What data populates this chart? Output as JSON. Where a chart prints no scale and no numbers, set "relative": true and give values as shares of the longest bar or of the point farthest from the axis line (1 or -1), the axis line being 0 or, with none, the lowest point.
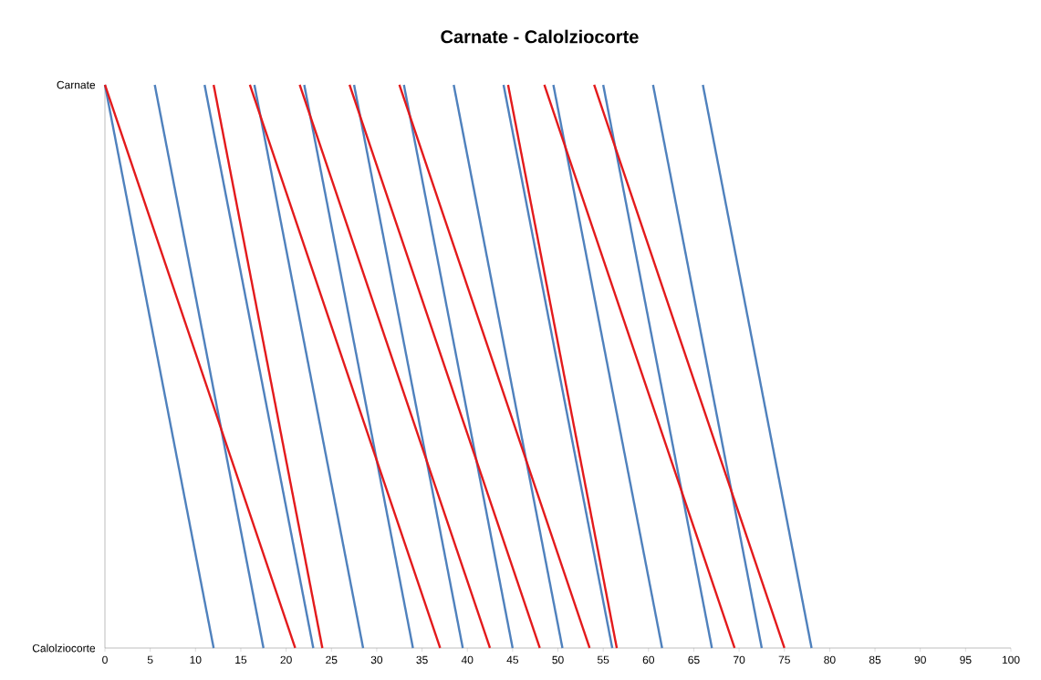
{
  "chart_data": {
    "type": "line",
    "title": "Carnate  - Calolziocorte",
    "relative": true,
    "annotations": [
      "Carnate",
      "Calolziocorte"
    ],
    "xlim": [
      0,
      100
    ],
    "xticks": [
      0,
      5,
      10,
      15,
      20,
      25,
      30,
      35,
      40,
      45,
      50,
      55,
      60,
      65,
      70,
      75,
      80,
      85,
      90,
      95,
      100
    ],
    "series": [
      {
        "color": "#4f81bd",
        "x": [
          0,
          12
        ],
        "values": [
          1,
          0
        ]
      },
      {
        "color": "#4f81bd",
        "x": [
          5.5,
          17.5
        ],
        "values": [
          1,
          0
        ]
      },
      {
        "color": "#4f81bd",
        "x": [
          11,
          23
        ],
        "values": [
          1,
          0
        ]
      },
      {
        "color": "#4f81bd",
        "x": [
          16.5,
          28.5
        ],
        "values": [
          1,
          0
        ]
      },
      {
        "color": "#4f81bd",
        "x": [
          22,
          34
        ],
        "values": [
          1,
          0
        ]
      },
      {
        "color": "#4f81bd",
        "x": [
          27.5,
          39.5
        ],
        "values": [
          1,
          0
        ]
      },
      {
        "color": "#4f81bd",
        "x": [
          33,
          45
        ],
        "values": [
          1,
          0
        ]
      },
      {
        "color": "#4f81bd",
        "x": [
          38.5,
          50.5
        ],
        "values": [
          1,
          0
        ]
      },
      {
        "color": "#4f81bd",
        "x": [
          44,
          56
        ],
        "values": [
          1,
          0
        ]
      },
      {
        "color": "#4f81bd",
        "x": [
          49.5,
          61.5
        ],
        "values": [
          1,
          0
        ]
      },
      {
        "color": "#4f81bd",
        "x": [
          55,
          67
        ],
        "values": [
          1,
          0
        ]
      },
      {
        "color": "#4f81bd",
        "x": [
          60.5,
          72.5
        ],
        "values": [
          1,
          0
        ]
      },
      {
        "color": "#4f81bd",
        "x": [
          66,
          78
        ],
        "values": [
          1,
          0
        ]
      },
      {
        "color": "#e31a1c",
        "x": [
          0,
          21
        ],
        "values": [
          1,
          0
        ]
      },
      {
        "color": "#e31a1c",
        "x": [
          12,
          24
        ],
        "values": [
          1,
          0
        ]
      },
      {
        "color": "#e31a1c",
        "x": [
          16,
          37
        ],
        "values": [
          1,
          0
        ]
      },
      {
        "color": "#e31a1c",
        "x": [
          21.5,
          42.5
        ],
        "values": [
          1,
          0
        ]
      },
      {
        "color": "#e31a1c",
        "x": [
          27,
          48
        ],
        "values": [
          1,
          0
        ]
      },
      {
        "color": "#e31a1c",
        "x": [
          32.5,
          53.5
        ],
        "values": [
          1,
          0
        ]
      },
      {
        "color": "#e31a1c",
        "x": [
          44.5,
          56.5
        ],
        "values": [
          1,
          0
        ]
      },
      {
        "color": "#e31a1c",
        "x": [
          48.5,
          69.5
        ],
        "values": [
          1,
          0
        ]
      },
      {
        "color": "#e31a1c",
        "x": [
          54,
          75
        ],
        "values": [
          1,
          0
        ]
      }
    ]
  }
}
